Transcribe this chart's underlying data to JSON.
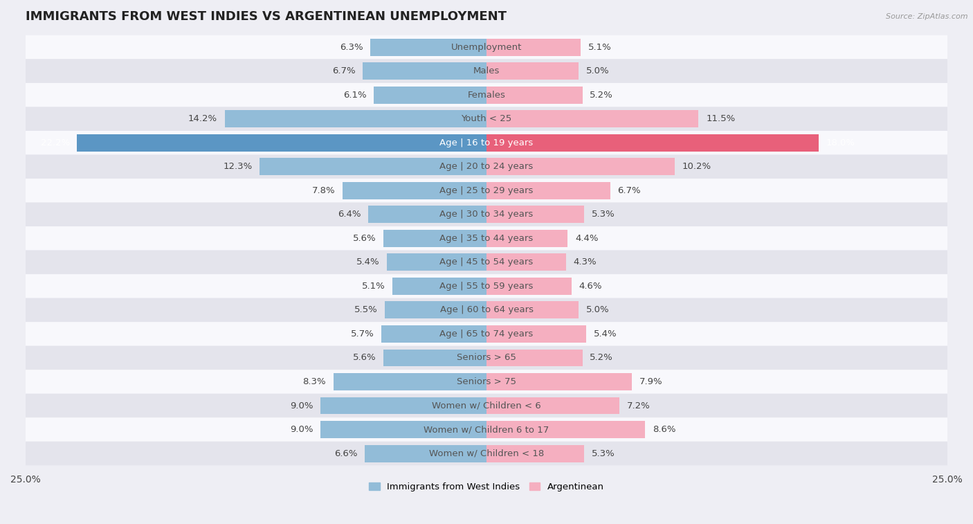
{
  "title": "IMMIGRANTS FROM WEST INDIES VS ARGENTINEAN UNEMPLOYMENT",
  "source": "Source: ZipAtlas.com",
  "categories": [
    "Unemployment",
    "Males",
    "Females",
    "Youth < 25",
    "Age | 16 to 19 years",
    "Age | 20 to 24 years",
    "Age | 25 to 29 years",
    "Age | 30 to 34 years",
    "Age | 35 to 44 years",
    "Age | 45 to 54 years",
    "Age | 55 to 59 years",
    "Age | 60 to 64 years",
    "Age | 65 to 74 years",
    "Seniors > 65",
    "Seniors > 75",
    "Women w/ Children < 6",
    "Women w/ Children 6 to 17",
    "Women w/ Children < 18"
  ],
  "left_values": [
    6.3,
    6.7,
    6.1,
    14.2,
    22.2,
    12.3,
    7.8,
    6.4,
    5.6,
    5.4,
    5.1,
    5.5,
    5.7,
    5.6,
    8.3,
    9.0,
    9.0,
    6.6
  ],
  "right_values": [
    5.1,
    5.0,
    5.2,
    11.5,
    18.0,
    10.2,
    6.7,
    5.3,
    4.4,
    4.3,
    4.6,
    5.0,
    5.4,
    5.2,
    7.9,
    7.2,
    8.6,
    5.3
  ],
  "left_color": "#92bcd8",
  "right_color": "#f5afc0",
  "left_label": "Immigrants from West Indies",
  "right_label": "Argentinean",
  "bar_height": 0.72,
  "xlim": 25.0,
  "background_color": "#eeeef4",
  "row_color_even": "#f8f8fc",
  "row_color_odd": "#e4e4ec",
  "title_fontsize": 13,
  "label_fontsize": 9.5,
  "value_fontsize": 9.5,
  "axis_fontsize": 10,
  "highlight_row": 4,
  "highlight_left_color": "#5b96c4",
  "highlight_right_color": "#e8607a",
  "highlight_left_label_color": "#ffffff",
  "highlight_right_label_color": "#ffffff"
}
